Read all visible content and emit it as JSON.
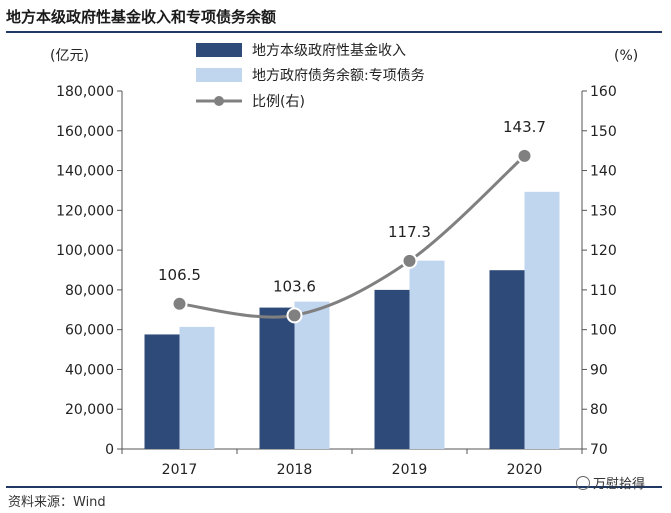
{
  "title": "地方本级政府性基金收入和专项债务余额",
  "source": "资料来源：Wind",
  "brand": "万慰拾得",
  "colors": {
    "bar1": "#2e4a78",
    "bar2": "#c0d6ef",
    "line": "#808080",
    "rule": "#1f3864"
  },
  "chart_data": {
    "type": "bar+line",
    "categories": [
      "2017",
      "2018",
      "2019",
      "2020"
    ],
    "y_left": {
      "unit_label": "(亿元)",
      "min": 0,
      "max": 180000,
      "step": 20000,
      "ticks": [
        "0",
        "20,000",
        "40,000",
        "60,000",
        "80,000",
        "100,000",
        "120,000",
        "140,000",
        "160,000",
        "180,000"
      ]
    },
    "y_right": {
      "unit_label": "(%)",
      "min": 70,
      "max": 160,
      "step": 10,
      "ticks": [
        "70",
        "80",
        "90",
        "100",
        "110",
        "120",
        "130",
        "140",
        "150",
        "160"
      ]
    },
    "series": [
      {
        "name": "地方本级政府性基金收入",
        "type": "bar",
        "axis": "left",
        "values": [
          57600,
          71100,
          80000,
          89900
        ]
      },
      {
        "name": "地方政府债务余额:专项债务",
        "type": "bar",
        "axis": "left",
        "values": [
          61400,
          74100,
          94700,
          129300
        ]
      },
      {
        "name": "比例(右)",
        "type": "line",
        "axis": "right",
        "values": [
          106.5,
          103.6,
          117.3,
          143.7
        ],
        "labels": [
          "106.5",
          "103.6",
          "117.3",
          "143.7"
        ]
      }
    ],
    "legend_position": "top"
  }
}
